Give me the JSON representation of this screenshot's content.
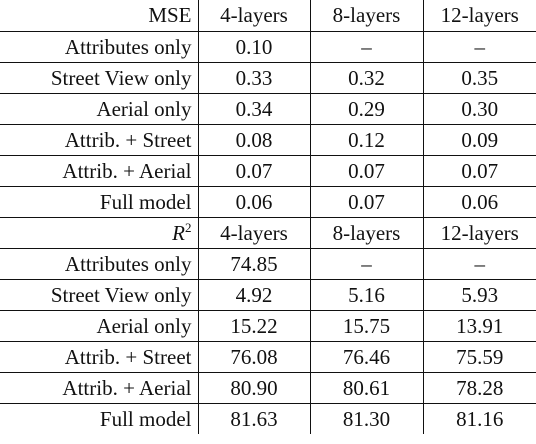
{
  "sections": [
    {
      "metric": "MSE",
      "columns": [
        "4-layers",
        "8-layers",
        "12-layers"
      ],
      "rows": [
        {
          "label": "Attributes only",
          "values": [
            "0.10",
            "–",
            "–"
          ]
        },
        {
          "label": "Street View only",
          "values": [
            "0.33",
            "0.32",
            "0.35"
          ]
        },
        {
          "label": "Aerial only",
          "values": [
            "0.34",
            "0.29",
            "0.30"
          ]
        },
        {
          "label": "Attrib. + Street",
          "values": [
            "0.08",
            "0.12",
            "0.09"
          ]
        },
        {
          "label": "Attrib. + Aerial",
          "values": [
            "0.07",
            "0.07",
            "0.07"
          ]
        },
        {
          "label": "Full model",
          "values": [
            "0.06",
            "0.07",
            "0.06"
          ]
        }
      ]
    },
    {
      "metric": "R",
      "metric_sup": "2",
      "columns": [
        "4-layers",
        "8-layers",
        "12-layers"
      ],
      "rows": [
        {
          "label": "Attributes only",
          "values": [
            "74.85",
            "–",
            "–"
          ]
        },
        {
          "label": "Street View only",
          "values": [
            "4.92",
            "5.16",
            "5.93"
          ]
        },
        {
          "label": "Aerial only",
          "values": [
            "15.22",
            "15.75",
            "13.91"
          ]
        },
        {
          "label": "Attrib. + Street",
          "values": [
            "76.08",
            "76.46",
            "75.59"
          ]
        },
        {
          "label": "Attrib. + Aerial",
          "values": [
            "80.90",
            "80.61",
            "78.28"
          ]
        },
        {
          "label": "Full model",
          "values": [
            "81.63",
            "81.30",
            "81.16"
          ]
        }
      ]
    }
  ]
}
